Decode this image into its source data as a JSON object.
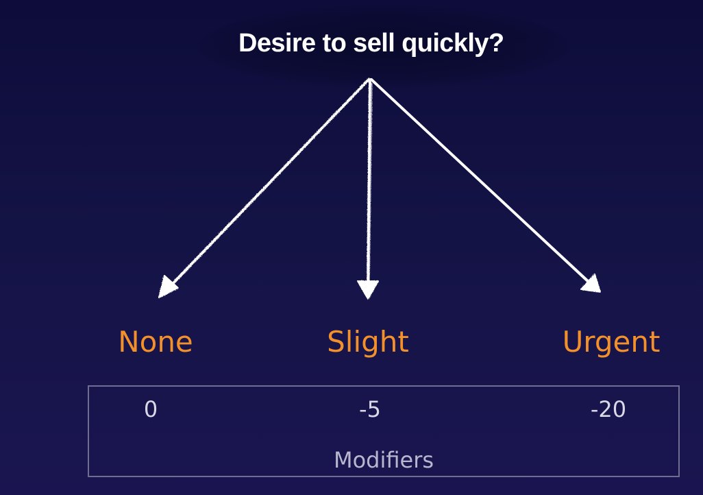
{
  "question": "Desire to sell quickly?",
  "options": [
    {
      "label": "None",
      "modifier": "0"
    },
    {
      "label": "Slight",
      "modifier": "-5"
    },
    {
      "label": "Urgent",
      "modifier": "-20"
    }
  ],
  "modifiers_caption": "Modifiers",
  "colors": {
    "background": "#141345",
    "title": "#ffffff",
    "option_label": "#f2902c",
    "arrow": "#ffffff",
    "box_border": "#6f6d93",
    "modifier_text": "#d9d8e6"
  }
}
